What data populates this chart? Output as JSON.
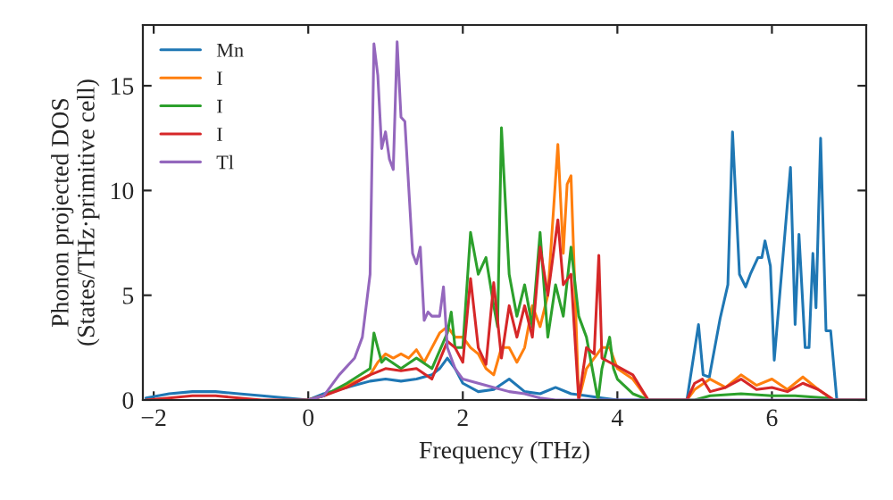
{
  "chart_data": {
    "type": "line",
    "xlabel": "Frequency (THz)",
    "ylabel": "Phonon projected DOS\n(States/THz·primitive cell)",
    "xlim": [
      -2.14,
      7.22
    ],
    "ylim": [
      0,
      17.9
    ],
    "xticks": [
      {
        "value": -2,
        "label": "−2"
      },
      0,
      2,
      4,
      6
    ],
    "yticks": [
      0,
      5,
      10,
      15
    ],
    "grid": false,
    "legend": "top left",
    "marker": "none",
    "line_style": "solid",
    "series": [
      {
        "name": "Mn",
        "color": "#1f77b4",
        "x": [
          -2.1,
          -1.8,
          -1.5,
          -1.2,
          -0.9,
          -0.6,
          0,
          0.2,
          0.4,
          0.6,
          0.8,
          1.0,
          1.2,
          1.4,
          1.6,
          1.7,
          1.8,
          1.9,
          2.0,
          2.2,
          2.4,
          2.6,
          2.8,
          3.0,
          3.2,
          3.4,
          3.6,
          3.8,
          4.0,
          4.9,
          5.05,
          5.11,
          5.19,
          5.33,
          5.43,
          5.49,
          5.58,
          5.66,
          5.72,
          5.82,
          5.87,
          5.91,
          5.98,
          6.03,
          6.24,
          6.3,
          6.35,
          6.43,
          6.48,
          6.53,
          6.57,
          6.63,
          6.7,
          6.76,
          6.84,
          7.2
        ],
        "values": [
          0.1,
          0.3,
          0.4,
          0.4,
          0.3,
          0.2,
          0,
          0.3,
          0.5,
          0.7,
          0.9,
          1,
          0.9,
          1,
          1.2,
          1.5,
          2,
          1.5,
          0.8,
          0.4,
          0.5,
          1,
          0.4,
          0.3,
          0.6,
          0.3,
          0.2,
          0.1,
          0,
          0,
          3.6,
          1.2,
          1.1,
          3.9,
          5.5,
          12.8,
          6,
          5.4,
          6,
          6.8,
          6.8,
          7.6,
          6.4,
          1.9,
          11.1,
          3.6,
          7.9,
          2.5,
          2.5,
          7,
          4.4,
          12.5,
          3.3,
          3.3,
          0,
          0
        ]
      },
      {
        "name": "I",
        "color": "#ff7f0e",
        "x": [
          0,
          0.2,
          0.5,
          0.8,
          0.9,
          1.0,
          1.1,
          1.2,
          1.3,
          1.4,
          1.5,
          1.6,
          1.7,
          1.8,
          1.9,
          2.0,
          2.1,
          2.2,
          2.3,
          2.4,
          2.5,
          2.6,
          2.7,
          2.8,
          2.9,
          3.0,
          3.1,
          3.23,
          3.3,
          3.35,
          3.4,
          3.5,
          3.6,
          3.7,
          3.8,
          3.9,
          4.0,
          4.2,
          4.4,
          4.9,
          5.0,
          5.2,
          5.4,
          5.6,
          5.8,
          6.0,
          6.2,
          6.4,
          6.6,
          6.8,
          7.2
        ],
        "values": [
          0,
          0.2,
          0.7,
          1.2,
          1.8,
          2.2,
          2,
          2.2,
          2,
          2.4,
          1.8,
          2.5,
          3.2,
          3.5,
          3,
          3,
          2.5,
          2.2,
          1.5,
          1.2,
          2.5,
          2.5,
          1.8,
          2.5,
          4.5,
          3.5,
          5,
          12.2,
          7,
          10.3,
          10.7,
          0,
          1.5,
          2,
          2.5,
          2.5,
          1.5,
          1,
          0,
          0,
          0.5,
          1,
          0.6,
          1.2,
          0.7,
          1,
          0.5,
          1.1,
          0.5,
          0,
          0
        ]
      },
      {
        "name": "I",
        "color": "#2ca02c",
        "x": [
          0,
          0.2,
          0.5,
          0.8,
          0.85,
          0.95,
          1.0,
          1.2,
          1.4,
          1.6,
          1.8,
          1.85,
          1.9,
          2.0,
          2.1,
          2.2,
          2.3,
          2.4,
          2.45,
          2.5,
          2.6,
          2.7,
          2.8,
          2.9,
          3.0,
          3.1,
          3.2,
          3.3,
          3.4,
          3.5,
          3.6,
          3.7,
          3.75,
          3.8,
          3.9,
          3.95,
          4.0,
          4.2,
          4.4,
          5.0,
          5.2,
          5.6,
          6.0,
          6.3,
          6.7,
          6.8,
          7.2
        ],
        "values": [
          0,
          0.2,
          0.8,
          1.5,
          3.2,
          1.8,
          2,
          1.5,
          2,
          1.5,
          3.2,
          4.2,
          2.5,
          2.5,
          8,
          6,
          6.8,
          4.5,
          3.5,
          13,
          6,
          4,
          5.5,
          3.5,
          8,
          3,
          5.5,
          4,
          7.3,
          4,
          3,
          1,
          0,
          1.5,
          3,
          1.5,
          1,
          0.3,
          0,
          0,
          0.2,
          0.3,
          0.2,
          0.2,
          0.1,
          0,
          0
        ]
      },
      {
        "name": "I",
        "color": "#d62728",
        "x": [
          -2.1,
          -1.8,
          -1.5,
          -1.2,
          -0.9,
          -0.6,
          -0.3,
          0,
          0.2,
          0.5,
          0.8,
          1.0,
          1.2,
          1.4,
          1.6,
          1.8,
          1.9,
          2.0,
          2.1,
          2.2,
          2.3,
          2.4,
          2.5,
          2.6,
          2.7,
          2.8,
          2.9,
          3.0,
          3.1,
          3.23,
          3.3,
          3.4,
          3.5,
          3.6,
          3.7,
          3.76,
          3.8,
          3.9,
          4.0,
          4.2,
          4.4,
          4.9,
          5.0,
          5.1,
          5.2,
          5.4,
          5.6,
          5.8,
          6.0,
          6.2,
          6.4,
          6.6,
          6.8,
          7.2
        ],
        "values": [
          0,
          0.1,
          0.2,
          0.2,
          0.1,
          0,
          0,
          0,
          0.2,
          0.6,
          1.2,
          1.5,
          1.4,
          1.5,
          1,
          2.8,
          2.5,
          1.8,
          5.8,
          2.5,
          1.7,
          5.6,
          2,
          4.5,
          3,
          4.5,
          3,
          7.3,
          5,
          8.6,
          5.5,
          6,
          0,
          2.5,
          2.2,
          6.9,
          2,
          1.8,
          1.6,
          1.2,
          0,
          0,
          0.8,
          1,
          0.4,
          0.6,
          1,
          0.5,
          0.6,
          0.4,
          0.8,
          0.5,
          0,
          0
        ]
      },
      {
        "name": "Tl",
        "color": "#9467bd",
        "x": [
          0,
          0.2,
          0.4,
          0.6,
          0.7,
          0.8,
          0.85,
          0.9,
          0.95,
          1.0,
          1.05,
          1.1,
          1.15,
          1.2,
          1.25,
          1.35,
          1.4,
          1.45,
          1.5,
          1.55,
          1.6,
          1.7,
          1.75,
          1.8,
          1.9,
          2.0,
          2.2,
          2.4,
          2.6,
          2.8,
          3.0,
          3.2,
          7.2
        ],
        "values": [
          0,
          0.2,
          1.2,
          2,
          3,
          6,
          17,
          15.5,
          12,
          12.8,
          11.5,
          11,
          17.1,
          13.5,
          13.3,
          7,
          6.5,
          7.3,
          3.8,
          4.2,
          4,
          4,
          5.4,
          2.5,
          1.5,
          1,
          0.8,
          0.6,
          0.4,
          0.3,
          0.1,
          0,
          0
        ]
      }
    ]
  }
}
